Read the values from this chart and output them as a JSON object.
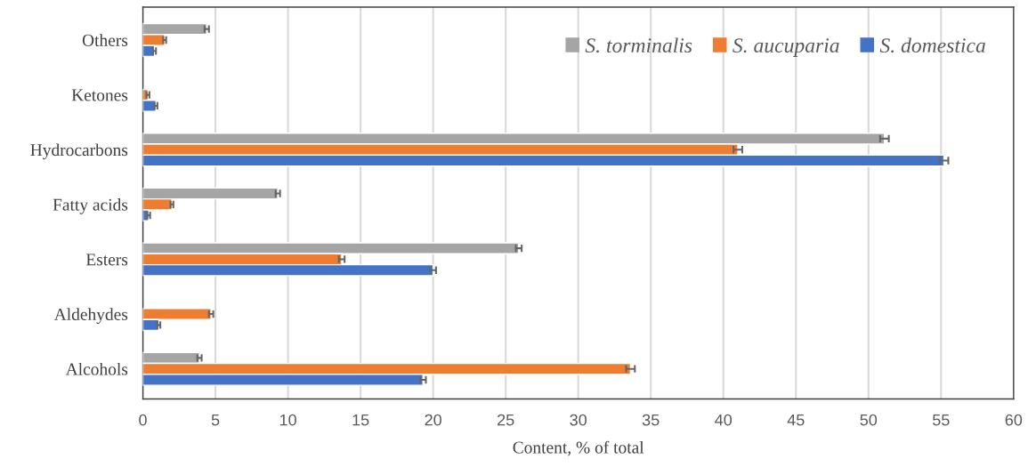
{
  "chart_data": {
    "type": "bar",
    "orientation": "horizontal",
    "xlabel": "Content, % of total",
    "categories": [
      "Others",
      "Ketones",
      "Hydrocarbons",
      "Fatty acids",
      "Esters",
      "Aldehydes",
      "Alcohols"
    ],
    "series": [
      {
        "name": "S. torminalis",
        "color": "#a5a5a5",
        "values": [
          4.4,
          null,
          51.1,
          9.3,
          25.9,
          null,
          3.9
        ],
        "errors": [
          0.15,
          null,
          0.3,
          0.15,
          0.2,
          null,
          0.15
        ]
      },
      {
        "name": "S. aucuparia",
        "color": "#ed7d31",
        "values": [
          1.5,
          0.35,
          41.0,
          2.0,
          13.7,
          4.7,
          33.6
        ],
        "errors": [
          0.1,
          0.1,
          0.3,
          0.1,
          0.2,
          0.15,
          0.3
        ]
      },
      {
        "name": "S. domestica",
        "color": "#4472c4",
        "values": [
          0.8,
          0.9,
          55.2,
          0.4,
          20.0,
          1.1,
          19.3
        ],
        "errors": [
          0.1,
          0.1,
          0.3,
          0.1,
          0.2,
          0.1,
          0.2
        ]
      }
    ],
    "xlim": [
      0,
      60
    ],
    "xticks": [
      0,
      5,
      10,
      15,
      20,
      25,
      30,
      35,
      40,
      45,
      50,
      55,
      60
    ],
    "grid": "x",
    "legend": "top right"
  }
}
